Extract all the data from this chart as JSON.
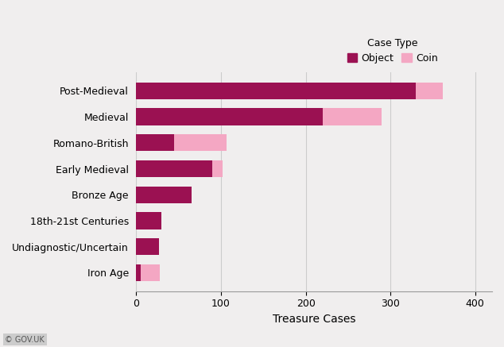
{
  "categories": [
    "Post-Medieval",
    "Medieval",
    "Romano-British",
    "Early Medieval",
    "Bronze Age",
    "18th-21st Centuries",
    "Undiagnostic/Uncertain",
    "Iron Age"
  ],
  "object_values": [
    330,
    220,
    45,
    90,
    65,
    30,
    27,
    5
  ],
  "coin_values": [
    32,
    70,
    62,
    12,
    0,
    0,
    0,
    23
  ],
  "object_color": "#9B1152",
  "coin_color": "#F4A7C3",
  "legend_title": "Case Type",
  "xlabel": "Treasure Cases",
  "xlim": [
    0,
    420
  ],
  "xticks": [
    0,
    100,
    200,
    300,
    400
  ],
  "legend_labels": [
    "Object",
    "Coin"
  ],
  "background_color": "#f0eeee",
  "plot_bg_color": "#f0eeee",
  "bar_height": 0.65,
  "watermark": "© GOV.UK",
  "grid_color": "#cccccc",
  "fontsize_ticks": 9,
  "fontsize_xlabel": 10,
  "fontsize_legend": 9
}
